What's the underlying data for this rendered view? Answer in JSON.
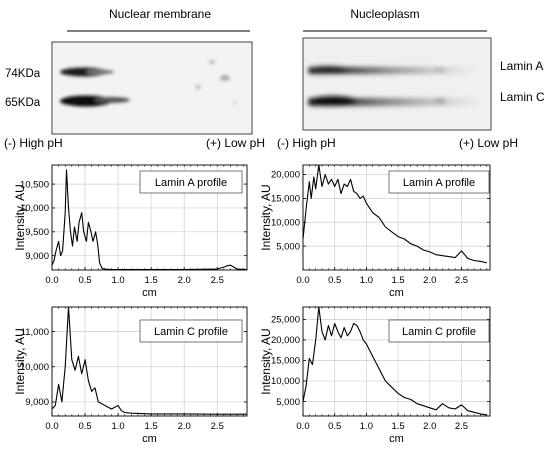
{
  "gel": {
    "left_title": "Nuclear membrane",
    "right_title": "Nucleoplasm",
    "mw_labels": [
      "74KDa",
      "65KDa"
    ],
    "band_labels": [
      "Lamin A",
      "Lamin C"
    ],
    "ph_left": "(-) High pH",
    "ph_right": "(+) Low pH"
  },
  "chart_data": [
    {
      "type": "line",
      "panel": "nuclear-membrane-lamin-a",
      "title": "Lamin A profile",
      "xlabel": "cm",
      "ylabel": "Intensity, AU",
      "xlim": [
        0,
        2.95
      ],
      "ylim": [
        8700,
        10900
      ],
      "xticks": [
        "0.0",
        "0.5",
        "1.0",
        "1.5",
        "2.0",
        "2.5"
      ],
      "yticks": [
        9000,
        9500,
        10000,
        10500
      ],
      "ytick_labels": [
        "9,000",
        "9,500",
        "10,000",
        "10,500"
      ],
      "grid": true,
      "x": [
        0,
        0.03,
        0.06,
        0.1,
        0.13,
        0.16,
        0.2,
        0.22,
        0.25,
        0.28,
        0.31,
        0.34,
        0.38,
        0.41,
        0.45,
        0.48,
        0.52,
        0.55,
        0.59,
        0.62,
        0.66,
        0.69,
        0.72,
        0.76,
        0.8,
        0.9,
        1.0,
        1.5,
        2.0,
        2.5,
        2.6,
        2.65,
        2.7,
        2.75,
        2.8,
        2.95
      ],
      "y": [
        8800,
        8900,
        9100,
        9300,
        9000,
        9100,
        9900,
        10800,
        10000,
        9500,
        9200,
        9600,
        9300,
        9700,
        9900,
        9500,
        9300,
        9700,
        9500,
        9300,
        9500,
        9250,
        8850,
        8730,
        8720,
        8710,
        8710,
        8710,
        8710,
        8720,
        8760,
        8790,
        8800,
        8760,
        8720,
        8710
      ]
    },
    {
      "type": "line",
      "panel": "nucleoplasm-lamin-a",
      "title": "Lamin A profile",
      "xlabel": "cm",
      "ylabel": "Intensity, AU",
      "xlim": [
        0,
        2.95
      ],
      "ylim": [
        0,
        22000
      ],
      "xticks": [
        "0.0",
        "0.5",
        "1.0",
        "1.5",
        "2.0",
        "2.5"
      ],
      "yticks": [
        5000,
        10000,
        15000,
        20000
      ],
      "ytick_labels": [
        "5,000",
        "10,000",
        "15,000",
        "20,000"
      ],
      "grid": true,
      "x": [
        0,
        0.05,
        0.1,
        0.13,
        0.17,
        0.2,
        0.25,
        0.3,
        0.35,
        0.4,
        0.45,
        0.5,
        0.55,
        0.6,
        0.65,
        0.7,
        0.75,
        0.8,
        0.85,
        0.9,
        0.95,
        1.0,
        1.1,
        1.2,
        1.3,
        1.4,
        1.5,
        1.6,
        1.7,
        1.8,
        1.9,
        2.0,
        2.1,
        2.2,
        2.3,
        2.4,
        2.5,
        2.6,
        2.7,
        2.8,
        2.9
      ],
      "y": [
        6500,
        13000,
        18500,
        15000,
        19500,
        17000,
        22000,
        17500,
        20000,
        18000,
        19000,
        17500,
        19000,
        16000,
        18000,
        17500,
        19000,
        16500,
        16000,
        15000,
        15500,
        14000,
        12000,
        11000,
        9000,
        8000,
        7000,
        6500,
        5500,
        5000,
        4200,
        3800,
        3200,
        3000,
        2800,
        2600,
        4000,
        2400,
        2000,
        1800,
        1500
      ]
    },
    {
      "type": "line",
      "panel": "nuclear-membrane-lamin-c",
      "title": "Lamin C profile",
      "xlabel": "cm",
      "ylabel": "Intensity, AU",
      "xlim": [
        0,
        2.95
      ],
      "ylim": [
        8600,
        11700
      ],
      "xticks": [
        "0.0",
        "0.5",
        "1.0",
        "1.5",
        "2.0",
        "2.5"
      ],
      "yticks": [
        9000,
        10000,
        11000
      ],
      "ytick_labels": [
        "9,000",
        "10,000",
        "11,000"
      ],
      "grid": true,
      "x": [
        0,
        0.05,
        0.1,
        0.15,
        0.2,
        0.25,
        0.3,
        0.35,
        0.4,
        0.45,
        0.5,
        0.55,
        0.6,
        0.65,
        0.7,
        0.75,
        0.8,
        0.9,
        1.0,
        1.05,
        1.1,
        1.2,
        1.5,
        2.0,
        2.5,
        2.95
      ],
      "y": [
        8800,
        8900,
        9500,
        9000,
        10000,
        11700,
        10200,
        9900,
        10300,
        9800,
        10200,
        9600,
        9300,
        9400,
        9000,
        8950,
        8900,
        8800,
        8900,
        8750,
        8700,
        8680,
        8660,
        8660,
        8650,
        8650
      ]
    },
    {
      "type": "line",
      "panel": "nucleoplasm-lamin-c",
      "title": "Lamin C profile",
      "xlabel": "cm",
      "ylabel": "Intensity, AU",
      "xlim": [
        0,
        2.95
      ],
      "ylim": [
        1500,
        28000
      ],
      "xticks": [
        "0.0",
        "0.5",
        "1.0",
        "1.5",
        "2.0",
        "2.5"
      ],
      "yticks": [
        5000,
        10000,
        15000,
        20000,
        25000
      ],
      "ytick_labels": [
        "5,000",
        "10,000",
        "15,000",
        "20,000",
        "25,000"
      ],
      "grid": true,
      "x": [
        0,
        0.05,
        0.1,
        0.15,
        0.2,
        0.25,
        0.3,
        0.35,
        0.4,
        0.45,
        0.5,
        0.55,
        0.6,
        0.65,
        0.7,
        0.75,
        0.8,
        0.85,
        0.9,
        0.95,
        1.0,
        1.1,
        1.2,
        1.3,
        1.4,
        1.5,
        1.6,
        1.7,
        1.8,
        1.9,
        2.0,
        2.1,
        2.2,
        2.3,
        2.4,
        2.5,
        2.6,
        2.7,
        2.8,
        2.9
      ],
      "y": [
        5000,
        9000,
        15500,
        14000,
        20000,
        28000,
        22000,
        20000,
        23500,
        21000,
        24000,
        22000,
        20500,
        23000,
        21000,
        22000,
        24000,
        23500,
        22000,
        20000,
        19000,
        16000,
        13000,
        10000,
        8500,
        7000,
        6000,
        5500,
        4500,
        4000,
        3500,
        3000,
        4500,
        3500,
        3200,
        4200,
        2800,
        2400,
        2000,
        1800
      ]
    }
  ]
}
